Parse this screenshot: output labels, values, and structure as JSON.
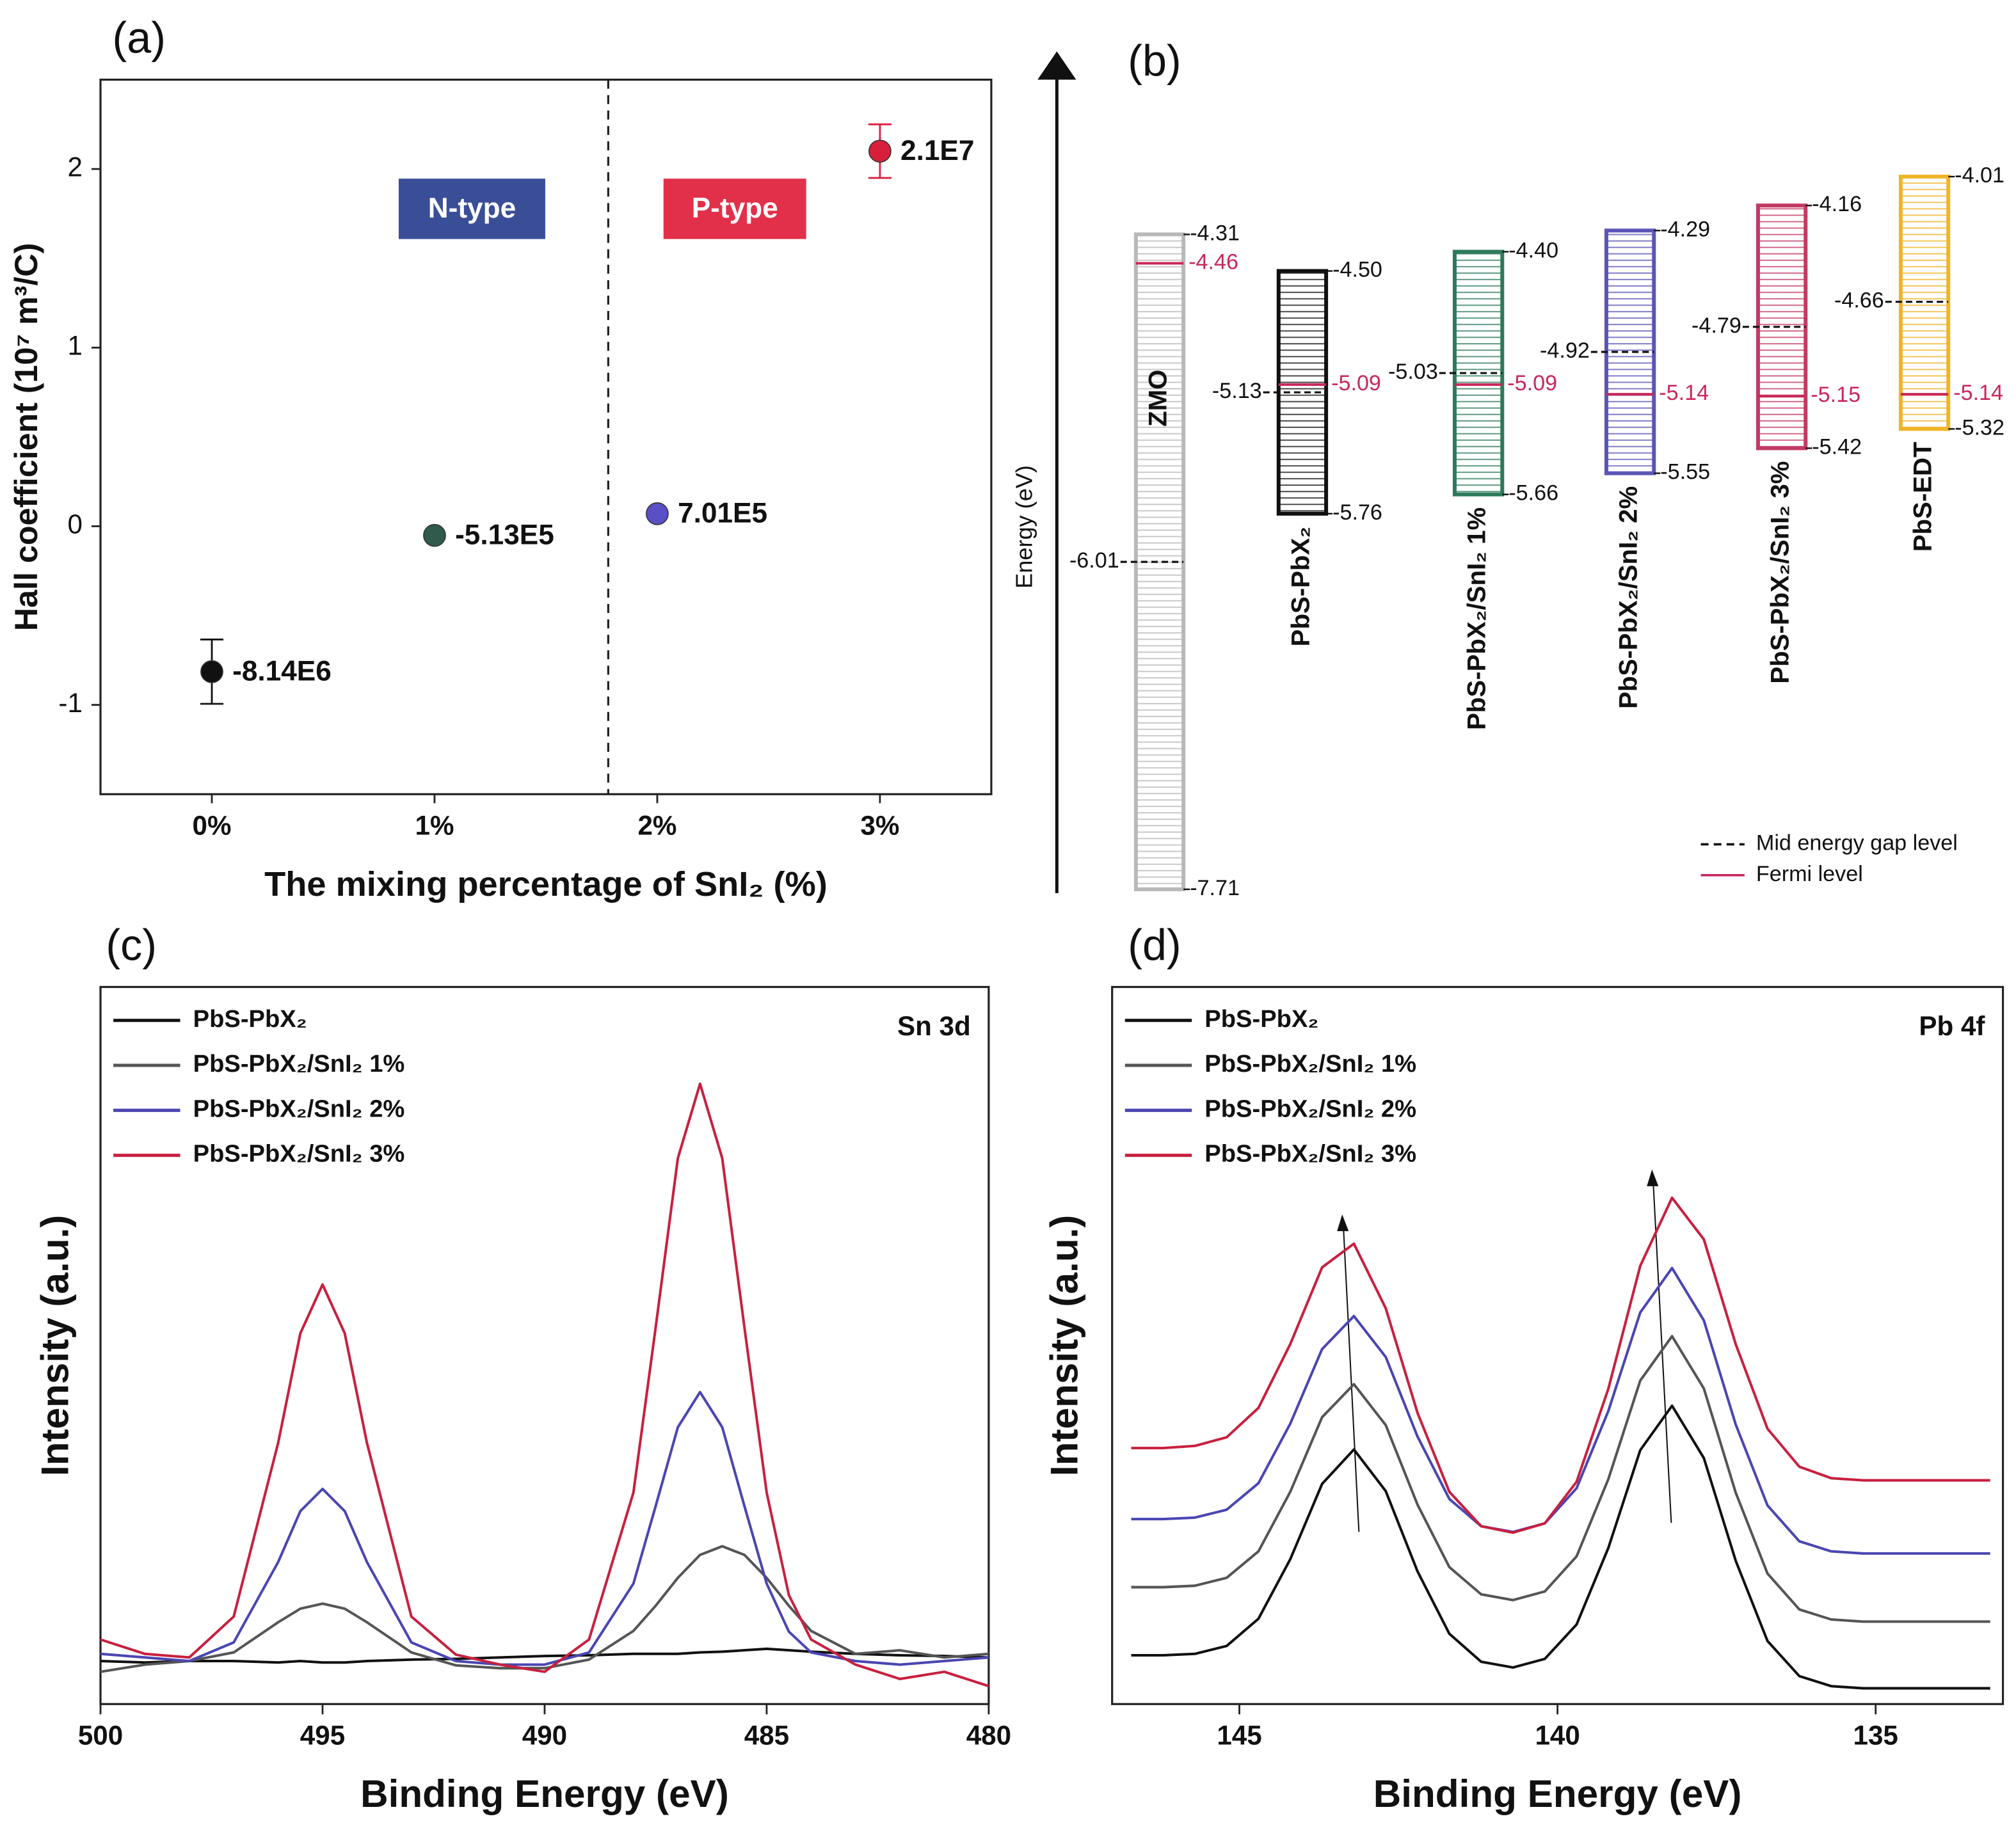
{
  "chart_data": [
    {
      "type": "scatter",
      "panel_label": "(a)",
      "x_label": "The mixing percentage of SnI₂ (%)",
      "y_label": "Hall coefficient (10⁷ m³/C)",
      "categories": [
        "0%",
        "1%",
        "2%",
        "3%"
      ],
      "values": [
        -0.814,
        -0.0513,
        0.0701,
        2.1
      ],
      "value_labels": [
        "-8.14E6",
        "-5.13E5",
        "7.01E5",
        "2.1E7"
      ],
      "errors": [
        0.18,
        null,
        null,
        0.15
      ],
      "colors": [
        "#111111",
        "#2f5a4c",
        "#5a4fc6",
        "#d8203c"
      ],
      "ylim": [
        -1.5,
        2.5
      ],
      "yticks": [
        -1,
        0,
        1,
        2
      ],
      "annotations": [
        "N-type",
        "P-type"
      ],
      "annotation_colors": [
        "#3a4e98",
        "#e2304a"
      ]
    },
    {
      "type": "band_diagram",
      "panel_label": "(b)",
      "y_label": "Energy (eV)",
      "ylim": [
        -7.73,
        -3.36
      ],
      "bands": [
        {
          "name": "ZMO",
          "color": "#b8b8b8",
          "cb": -4.31,
          "vb": -7.71,
          "mid": -6.01,
          "fermi": -4.46
        },
        {
          "name": "PbS-PbX₂",
          "color": "#111111",
          "cb": -4.5,
          "cb_label": "-4.50",
          "vb": -5.76,
          "mid": -5.13,
          "fermi": -5.09
        },
        {
          "name": "PbS-PbX₂/SnI₂ 1%",
          "color": "#2d7a5b",
          "cb": -4.4,
          "cb_label": "-4.40",
          "vb": -5.66,
          "mid": -5.03,
          "fermi": -5.09
        },
        {
          "name": "PbS-PbX₂/SnI₂ 2%",
          "color": "#5a55b6",
          "cb": -4.29,
          "vb": -5.55,
          "mid": -4.92,
          "fermi": -5.14
        },
        {
          "name": "PbS-PbX₂/SnI₂ 3%",
          "color": "#c23a64",
          "cb": -4.16,
          "vb": -5.42,
          "mid": -4.79,
          "fermi": -5.15
        },
        {
          "name": "PbS-EDT",
          "color": "#f0b428",
          "cb": -4.01,
          "vb": -5.32,
          "mid": -4.66,
          "fermi": -5.14
        }
      ],
      "legend": [
        "Mid energy gap level",
        "Fermi level"
      ],
      "mid_color": "#111111",
      "fermi_color": "#c8285a"
    },
    {
      "type": "line",
      "panel_label": "(c)",
      "annotation": "Sn 3d",
      "x_label": "Binding Energy (eV)",
      "y_label": "Intensity (a.u.)",
      "x": [
        500,
        499,
        498,
        497,
        496,
        495.5,
        495,
        494.5,
        494,
        493,
        492,
        491,
        490,
        489,
        488,
        487.5,
        487,
        486.5,
        486,
        485.5,
        485,
        484.5,
        484,
        483,
        482,
        481,
        480
      ],
      "xlim": [
        500,
        480
      ],
      "xticks": [
        500,
        495,
        490,
        485,
        480
      ],
      "ylim": [
        0,
        100
      ],
      "series": [
        {
          "name": "PbS-PbX₂",
          "color": "#111111",
          "values": [
            6,
            5.8,
            6,
            6,
            5.8,
            6,
            5.8,
            5.8,
            6,
            6.2,
            6.3,
            6.5,
            6.7,
            6.8,
            7,
            7,
            7,
            7.2,
            7.3,
            7.5,
            7.7,
            7.5,
            7.3,
            7,
            6.8,
            6.7,
            6.5
          ]
        },
        {
          "name": "PbS-PbX₂/SnI₂ 1%",
          "color": "#555555",
          "values": [
            4.5,
            5.5,
            6,
            7.2,
            11.4,
            13.3,
            14,
            13.3,
            11.4,
            7.2,
            5.4,
            5,
            5,
            6.2,
            10.2,
            13.7,
            17.6,
            20.8,
            22,
            20.8,
            17.6,
            13.7,
            10.2,
            7,
            7.5,
            6.5,
            7
          ]
        },
        {
          "name": "PbS-PbX₂/SnI₂ 2%",
          "color": "#4a46b2",
          "values": [
            7,
            6.5,
            6,
            8.6,
            19.8,
            26.9,
            30,
            26.9,
            19.8,
            8.6,
            6,
            5.5,
            5.5,
            7.2,
            16.8,
            27.6,
            38.6,
            43.5,
            38.6,
            27.6,
            16.8,
            10.1,
            7.2,
            6,
            5.5,
            6,
            6.5
          ]
        },
        {
          "name": "PbS-PbX₂/SnI₂ 3%",
          "color": "#c8203f",
          "values": [
            9,
            7,
            6.5,
            12.2,
            36.4,
            51.7,
            58.5,
            51.7,
            36.4,
            12.2,
            6.9,
            5.5,
            4.5,
            9,
            29.5,
            52.5,
            76.1,
            86.5,
            76.1,
            52.5,
            29.5,
            15.2,
            9,
            5.5,
            3.5,
            4.5,
            2.5
          ]
        }
      ]
    },
    {
      "type": "line",
      "panel_label": "(d)",
      "annotation": "Pb 4f",
      "x_label": "Binding Energy (eV)",
      "y_label": "Intensity (a.u.)",
      "x": [
        146.7,
        146.2,
        145.7,
        145.2,
        144.7,
        144.2,
        143.7,
        143.2,
        142.7,
        142.2,
        141.7,
        141.2,
        140.7,
        140.2,
        139.7,
        139.2,
        138.7,
        138.2,
        137.7,
        137.2,
        136.7,
        136.2,
        135.7,
        135.2,
        134.7,
        134.2,
        133.7,
        133.2
      ],
      "xlim": [
        147,
        133
      ],
      "xticks": [
        145,
        140,
        135
      ],
      "ylim": [
        0,
        100
      ],
      "series": [
        {
          "name": "PbS-PbX₂",
          "color": "#111111",
          "values": [
            6.8,
            6.8,
            7,
            8.1,
            11.9,
            20.2,
            30.7,
            35.5,
            29.7,
            18.5,
            9.8,
            5.9,
            5.1,
            6.3,
            11.1,
            21.8,
            35.4,
            41.6,
            34.3,
            20,
            8.8,
            3.9,
            2.5,
            2.2,
            2.2,
            2.2,
            2.2,
            2.2
          ]
        },
        {
          "name": "PbS-PbX₂/SnI₂ 1%",
          "color": "#555555",
          "values": [
            16.3,
            16.3,
            16.5,
            17.6,
            21.3,
            29.6,
            40,
            44.6,
            38.9,
            27.8,
            19.1,
            15.3,
            14.5,
            15.7,
            20.6,
            31.4,
            45.1,
            51.3,
            44,
            29.5,
            18.2,
            13.2,
            11.8,
            11.5,
            11.5,
            11.5,
            11.5,
            11.5
          ]
        },
        {
          "name": "PbS-PbX₂/SnI₂ 2%",
          "color": "#4a46b2",
          "values": [
            25.8,
            25.8,
            26,
            27.1,
            30.8,
            39.1,
            49.5,
            54.1,
            48.4,
            37.3,
            28.6,
            24.8,
            24,
            25.2,
            30.1,
            40.9,
            54.6,
            60.8,
            53.5,
            39,
            27.7,
            22.7,
            21.3,
            21,
            21,
            21,
            21,
            21
          ]
        },
        {
          "name": "PbS-PbX₂/SnI₂ 3%",
          "color": "#c8203f",
          "values": [
            35.7,
            35.7,
            36,
            37.2,
            41.3,
            50.2,
            60.9,
            64.2,
            55.2,
            40.6,
            29.6,
            24.8,
            23.9,
            25.2,
            31,
            44,
            61.1,
            70.6,
            64.8,
            50.2,
            38.4,
            33.1,
            31.5,
            31.2,
            31.2,
            31.2,
            31.2,
            31.2
          ]
        }
      ]
    }
  ]
}
